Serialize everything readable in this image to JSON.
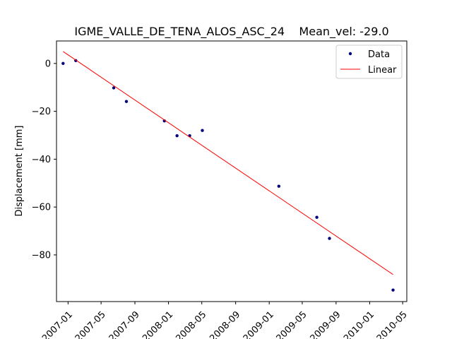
{
  "chart_data": {
    "type": "scatter",
    "title": "IGME_VALLE_DE_TENA_ALOS_ASC_24    Mean_vel: -29.0",
    "xlabel": "",
    "ylabel": "Displacement [mm]",
    "x_ticks": [
      "2007-01",
      "2007-05",
      "2007-09",
      "2008-01",
      "2008-05",
      "2008-09",
      "2009-01",
      "2009-05",
      "2009-09",
      "2010-01",
      "2010-05"
    ],
    "y_ticks": [
      "0",
      "−20",
      "−40",
      "−60",
      "−80"
    ],
    "y_tick_values": [
      0,
      -20,
      -40,
      -60,
      -80
    ],
    "xlim": [
      "2006-11-20",
      "2010-05-16"
    ],
    "ylim": [
      -99.5,
      9.4
    ],
    "grid": false,
    "legend": {
      "placement": "top-right",
      "entries": [
        "Data",
        "Linear"
      ]
    },
    "series": [
      {
        "name": "Data",
        "kind": "points",
        "color": "#00007f",
        "points": [
          {
            "x": "2006-12-14",
            "y": 0.0
          },
          {
            "x": "2007-01-29",
            "y": 1.2
          },
          {
            "x": "2007-06-16",
            "y": -10.2
          },
          {
            "x": "2007-08-01",
            "y": -15.9
          },
          {
            "x": "2007-12-17",
            "y": -24.0
          },
          {
            "x": "2008-02-01",
            "y": -30.2
          },
          {
            "x": "2008-03-18",
            "y": -30.2
          },
          {
            "x": "2008-05-03",
            "y": -28.0
          },
          {
            "x": "2009-02-05",
            "y": -51.3
          },
          {
            "x": "2009-06-23",
            "y": -64.3
          },
          {
            "x": "2009-08-08",
            "y": -73.1
          },
          {
            "x": "2010-03-27",
            "y": -94.7
          }
        ]
      },
      {
        "name": "Linear",
        "kind": "line",
        "color": "#ff0000",
        "points": [
          {
            "x": "2006-12-14",
            "y": 5.0
          },
          {
            "x": "2010-03-27",
            "y": -88.2
          }
        ]
      }
    ]
  }
}
